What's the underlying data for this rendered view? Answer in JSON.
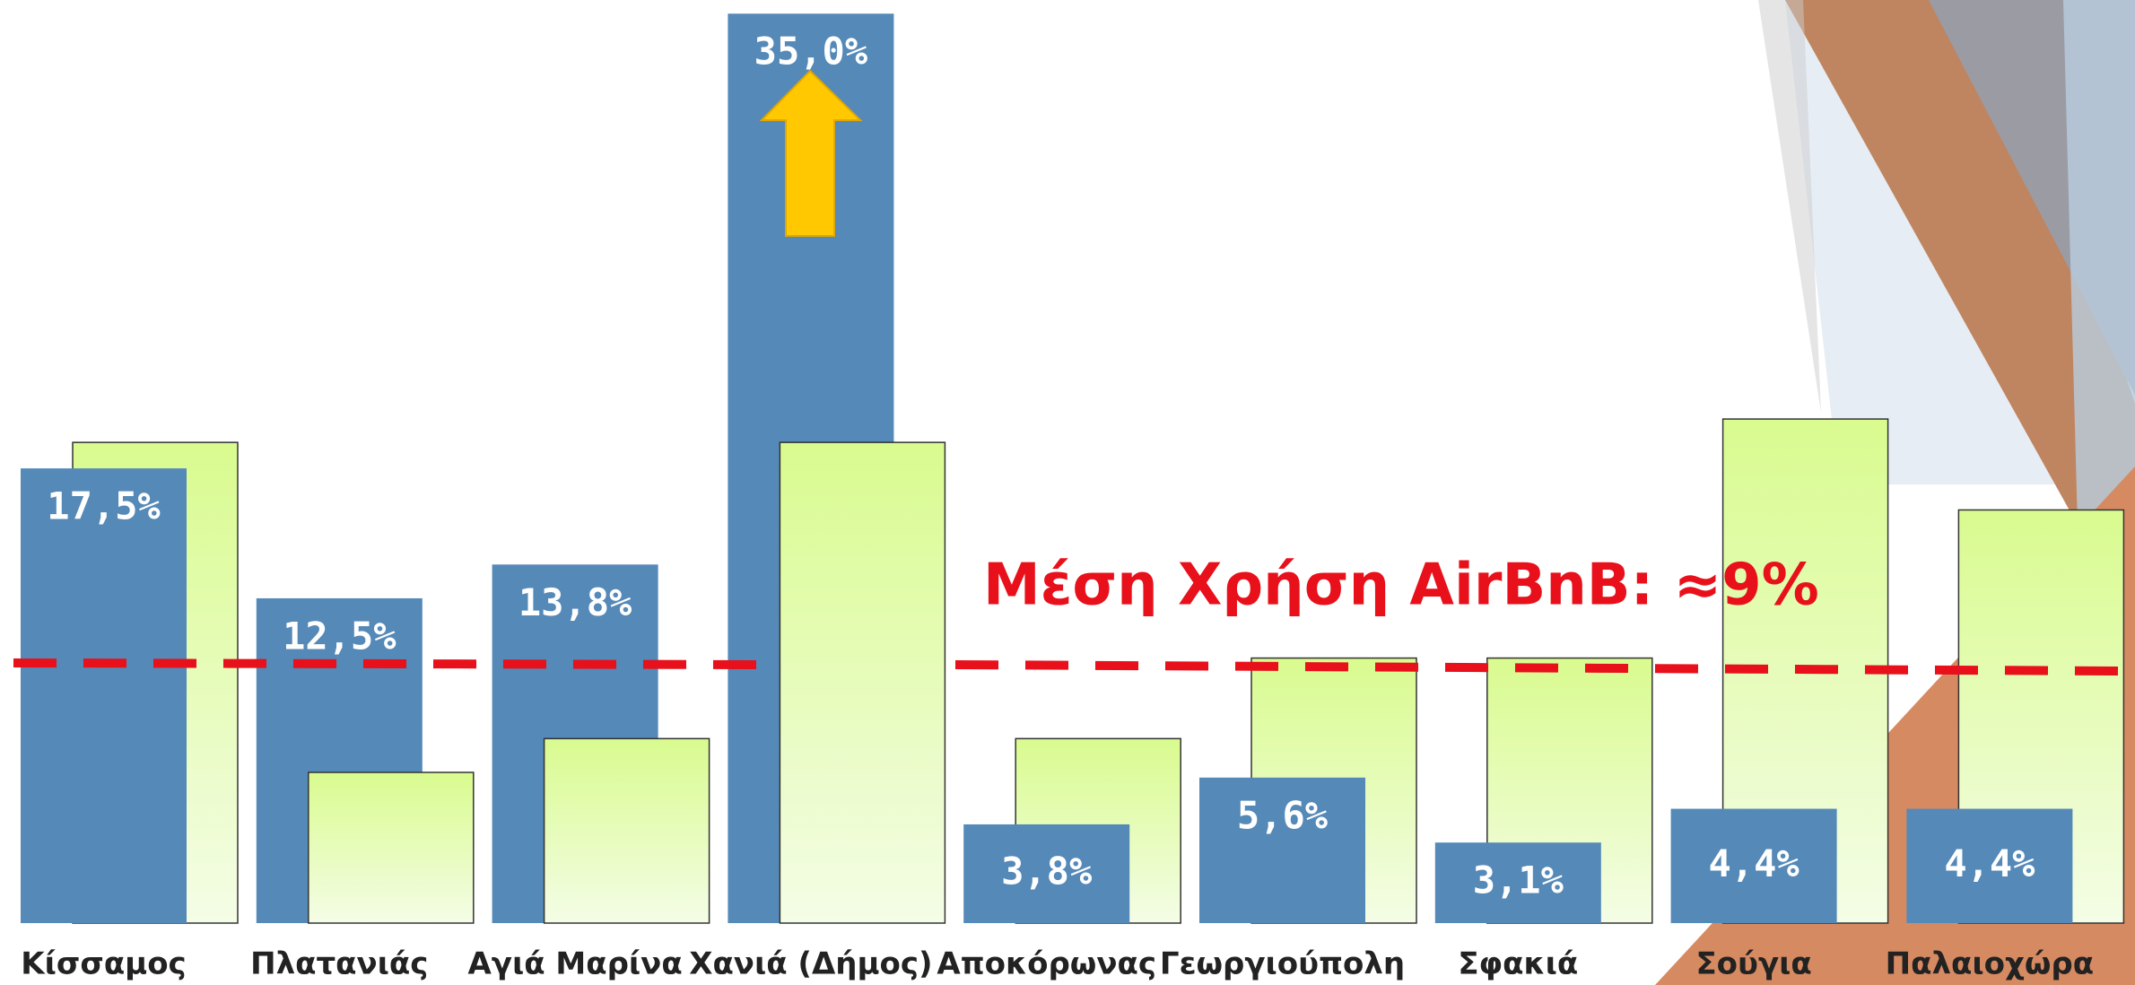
{
  "chart_data": {
    "type": "bar",
    "categories": [
      "Κίσσαμος",
      "Πλατανιάς",
      "Αγιά Μαρίνα",
      "Χανιά (Δήμος)",
      "Αποκόρωνας",
      "Γεωργιούπολη",
      "Σφακιά",
      "Σούγια",
      "Παλαιοχώρα"
    ],
    "series": [
      {
        "color": "#5589b8",
        "values": [
          17.5,
          12.5,
          13.8,
          35.0,
          3.8,
          5.6,
          3.1,
          4.4,
          4.4
        ],
        "value_labels": [
          "17,5%",
          "12,5%",
          "13,8%",
          "35,0%",
          "3,8%",
          "5,6%",
          "3,1%",
          "4,4%",
          "4,4%"
        ]
      },
      {
        "color": "#dffb9f",
        "values": [
          18.5,
          5.8,
          7.1,
          18.5,
          7.1,
          10.2,
          10.2,
          19.4,
          15.9
        ]
      }
    ],
    "ylim": [
      0,
      35.25
    ],
    "annotation": "Μέση Χρήση AirBnB: ≈9%"
  }
}
